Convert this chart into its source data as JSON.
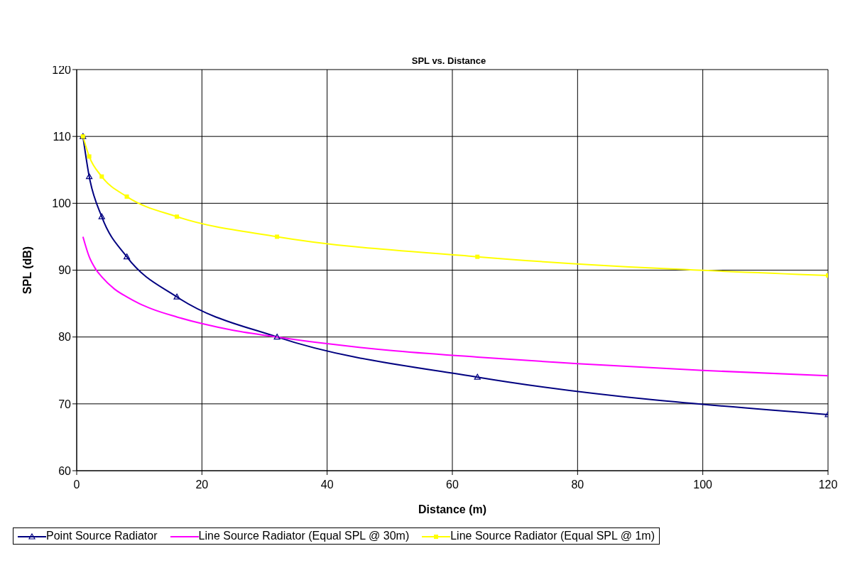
{
  "chart_data": {
    "type": "line",
    "title": "SPL vs. Distance",
    "xlabel": "Distance (m)",
    "ylabel": "SPL (dB)",
    "xlim": [
      0,
      120
    ],
    "xticks": [
      0,
      20,
      40,
      60,
      80,
      100,
      120
    ],
    "ylim": [
      60,
      120
    ],
    "yticks": [
      60,
      70,
      80,
      90,
      100,
      110,
      120
    ],
    "grid": true,
    "legend": "bottom",
    "series": [
      {
        "name": "Point Source Radiator",
        "color": "#000080",
        "marker": "triangle",
        "x": [
          1,
          2,
          4,
          8,
          16,
          32,
          64,
          120
        ],
        "values": [
          110,
          104,
          98,
          92,
          86,
          80,
          74,
          68.4
        ]
      },
      {
        "name": "Line Source Radiator (Equal SPL @ 30m)",
        "color": "#ff00ff",
        "marker": "none",
        "x": [
          1,
          2,
          3,
          4,
          6,
          8,
          10,
          12,
          16,
          20,
          25,
          32,
          40,
          50,
          64,
          80,
          100,
          120
        ],
        "values": [
          95,
          92,
          90.2,
          89,
          87.2,
          86,
          85,
          84.2,
          83,
          82,
          81,
          80,
          79,
          78,
          77,
          76,
          75,
          74.2
        ]
      },
      {
        "name": "Line Source Radiator (Equal SPL @ 1m)",
        "color": "#ffff00",
        "marker": "square",
        "x": [
          1,
          2,
          4,
          8,
          16,
          32,
          64,
          120
        ],
        "values": [
          110,
          107,
          104,
          101,
          98,
          95,
          92,
          89.2
        ]
      }
    ]
  }
}
